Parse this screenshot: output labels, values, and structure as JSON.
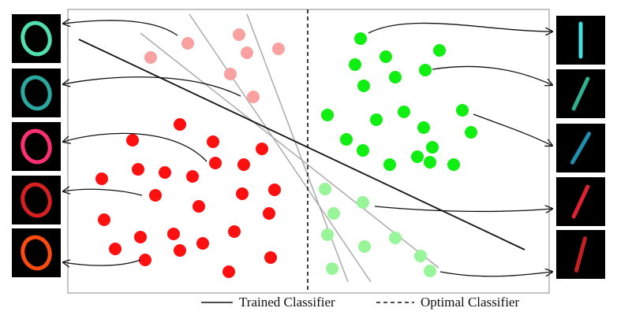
{
  "legend": {
    "items": [
      {
        "label": "Trained Classifier"
      },
      {
        "label": "Optimal Classifier"
      }
    ]
  }
}
